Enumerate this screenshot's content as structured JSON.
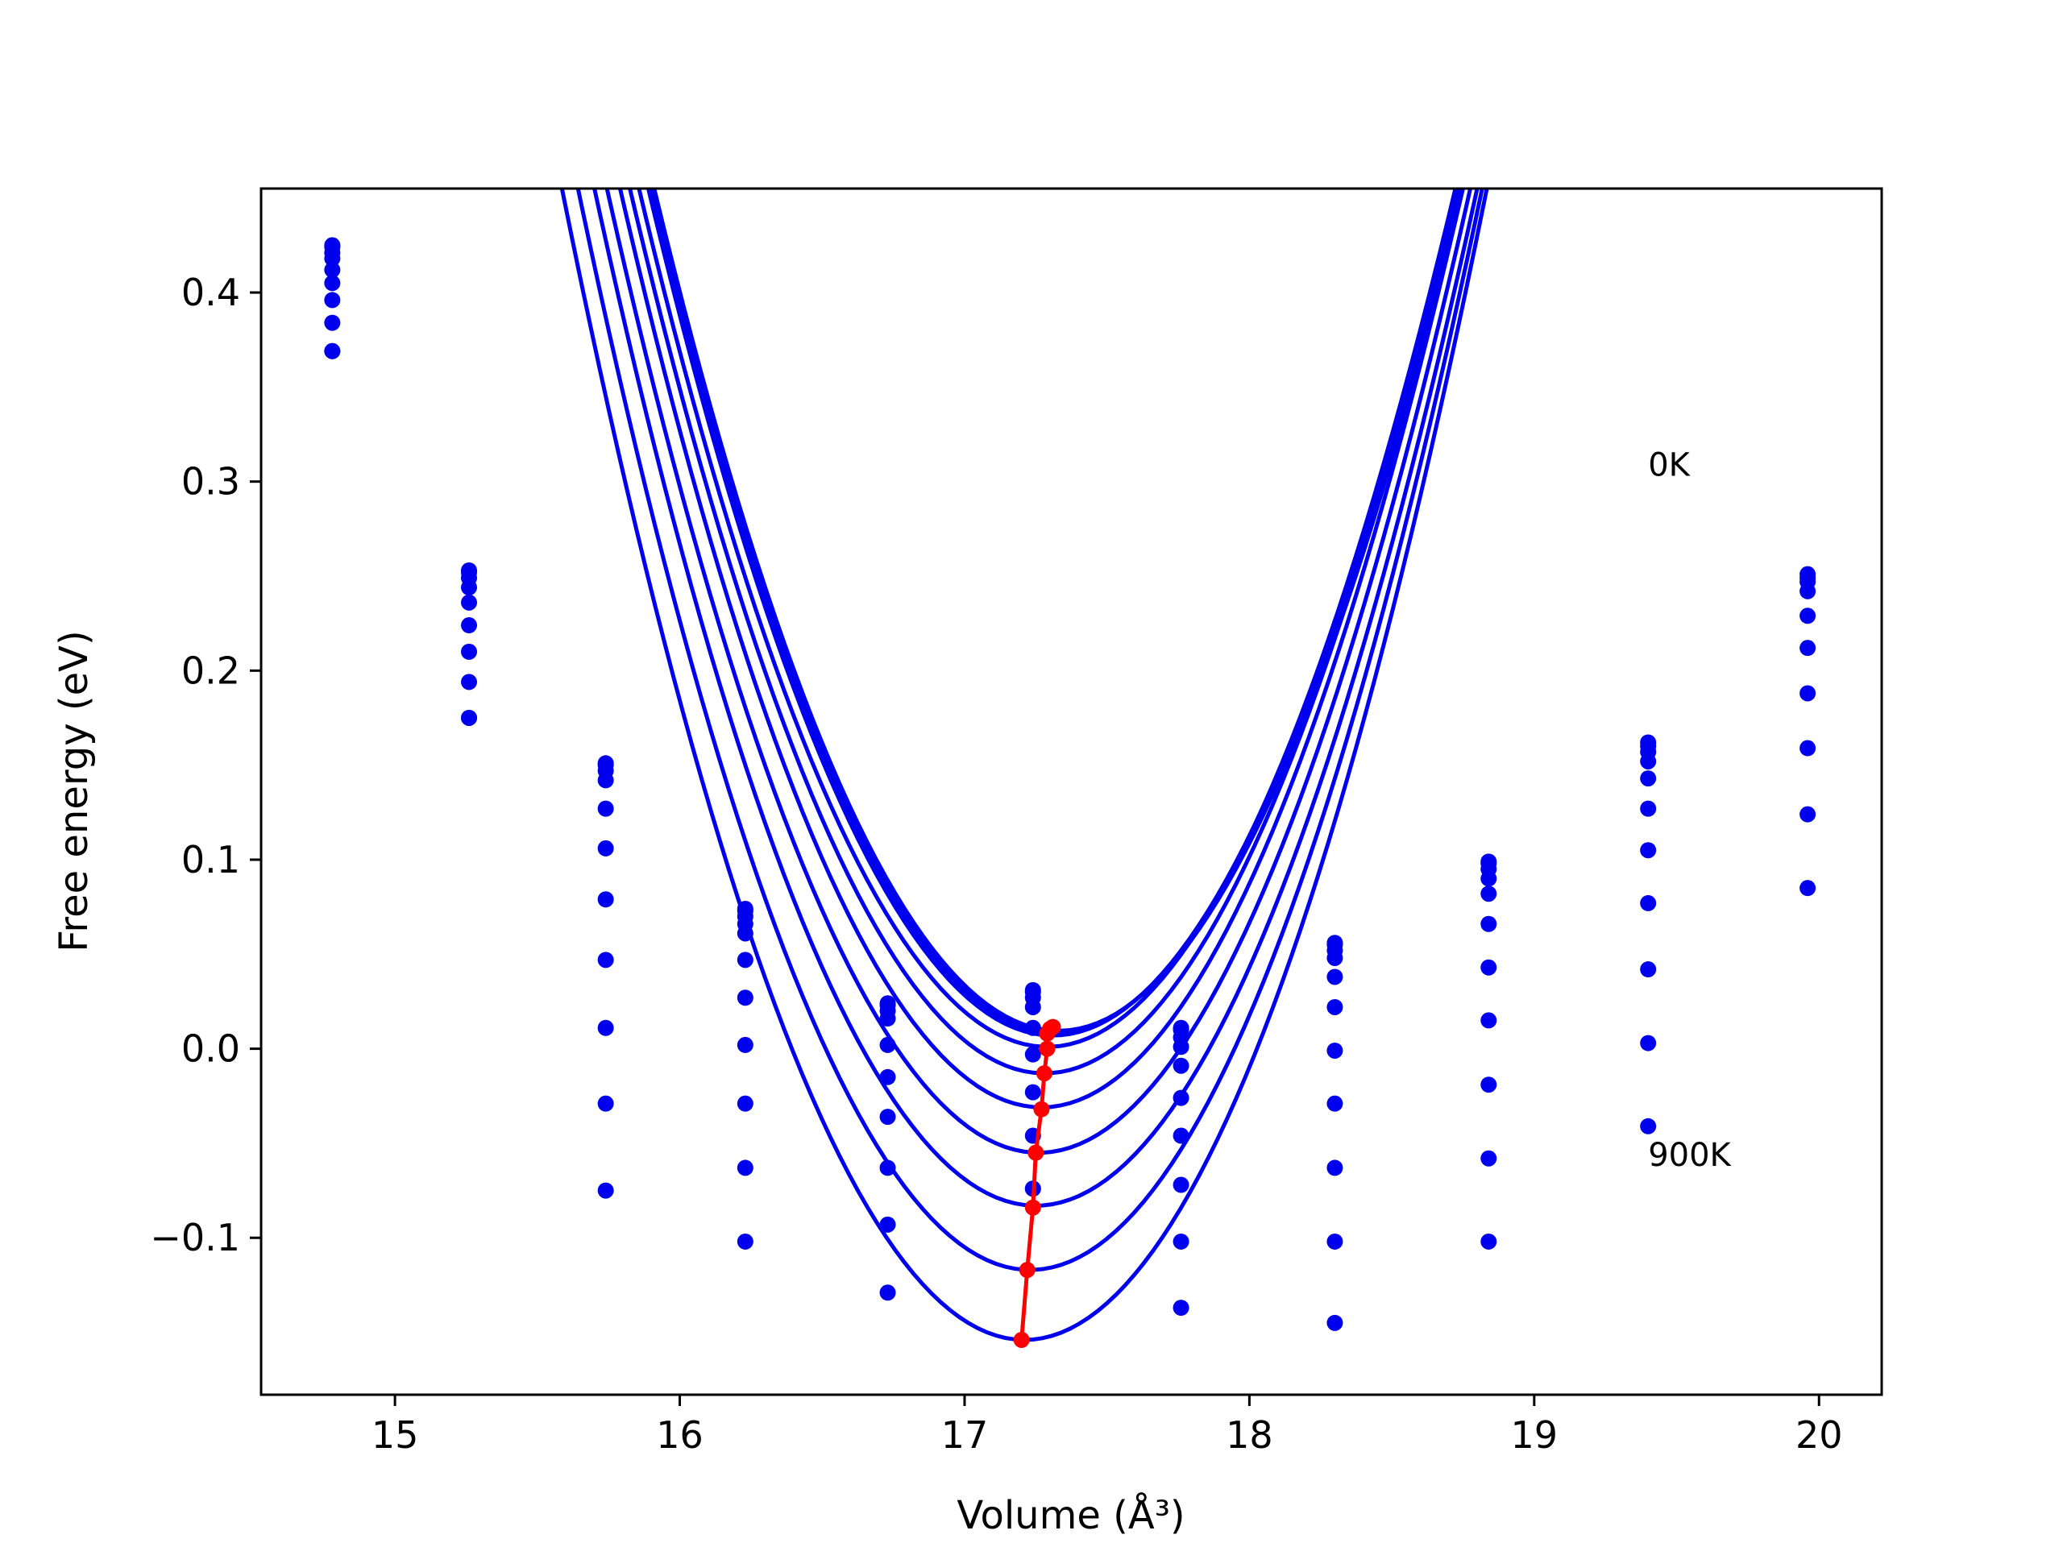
{
  "chart_data": {
    "type": "scatter",
    "title": "",
    "xlabel": "Volume (Å³)",
    "ylabel": "Free energy (eV)",
    "xlim": [
      14.53,
      20.22
    ],
    "ylim": [
      -0.183,
      0.455
    ],
    "xticks": [
      15,
      16,
      17,
      18,
      19,
      20
    ],
    "yticks": [
      -0.1,
      0.0,
      0.1,
      0.2,
      0.3,
      0.4
    ],
    "xtick_labels": [
      "15",
      "16",
      "17",
      "18",
      "19",
      "20"
    ],
    "ytick_labels": [
      "−0.1",
      "0.0",
      "0.1",
      "0.2",
      "0.3",
      "0.4"
    ],
    "grid": false,
    "legend": "none",
    "colors": {
      "points": "#0000ee",
      "fits": "#0000ee",
      "minima": "#ff0000"
    },
    "annotations": [
      {
        "text": "0K",
        "x": 19.4,
        "y": 0.303
      },
      {
        "text": "900K",
        "x": 19.4,
        "y": -0.062
      }
    ],
    "volumes": [
      14.78,
      15.26,
      15.74,
      16.23,
      16.73,
      17.24,
      17.76,
      18.3,
      18.84,
      19.4,
      19.96
    ],
    "series": [
      {
        "values": [
          0.425,
          0.253,
          0.151,
          0.074,
          0.024,
          0.031,
          0.011,
          0.056,
          0.099,
          0.162,
          0.251
        ],
        "fit": {
          "a": 0.221,
          "v0": 17.33,
          "e0": 0.0095
        },
        "minimum": [
          17.31,
          0.0115
        ]
      },
      {
        "values": [
          0.424,
          0.252,
          0.15,
          0.073,
          0.023,
          0.03,
          0.01,
          0.055,
          0.098,
          0.16,
          0.249
        ],
        "fit": {
          "a": 0.221,
          "v0": 17.32,
          "e0": 0.0085
        },
        "minimum": [
          17.3,
          0.0105
        ]
      },
      {
        "values": [
          0.421,
          0.249,
          0.147,
          0.07,
          0.02,
          0.027,
          0.006,
          0.052,
          0.095,
          0.157,
          0.247
        ],
        "fit": {
          "a": 0.222,
          "v0": 17.31,
          "e0": 0.007
        },
        "minimum": [
          17.29,
          0.008
        ]
      },
      {
        "values": [
          0.418,
          0.244,
          0.142,
          0.066,
          0.016,
          0.022,
          0.001,
          0.048,
          0.09,
          0.152,
          0.242
        ],
        "fit": {
          "a": 0.221,
          "v0": 17.29,
          "e0": 0.001
        },
        "minimum": [
          17.29,
          0.0
        ]
      },
      {
        "values": [
          0.412,
          0.236,
          0.127,
          0.061,
          0.002,
          0.011,
          -0.009,
          0.038,
          0.082,
          0.143,
          0.229
        ],
        "fit": {
          "a": 0.221,
          "v0": 17.28,
          "e0": -0.013
        },
        "minimum": [
          17.28,
          -0.013
        ]
      },
      {
        "values": [
          0.405,
          0.224,
          0.106,
          0.047,
          -0.015,
          -0.003,
          -0.026,
          0.022,
          0.066,
          0.127,
          0.212
        ],
        "fit": {
          "a": 0.222,
          "v0": 17.27,
          "e0": -0.031
        },
        "minimum": [
          17.27,
          -0.032
        ]
      },
      {
        "values": [
          0.396,
          0.21,
          0.079,
          0.027,
          -0.036,
          -0.023,
          -0.046,
          -0.001,
          0.043,
          0.105,
          0.188
        ],
        "fit": {
          "a": 0.222,
          "v0": 17.26,
          "e0": -0.055
        },
        "minimum": [
          17.25,
          -0.055
        ]
      },
      {
        "values": [
          0.384,
          0.194,
          0.047,
          0.002,
          -0.063,
          -0.046,
          -0.072,
          -0.029,
          0.015,
          0.077,
          0.159
        ],
        "fit": {
          "a": 0.224,
          "v0": 17.25,
          "e0": -0.083
        },
        "minimum": [
          17.24,
          -0.084
        ]
      },
      {
        "values": [
          0.369,
          0.175,
          0.011,
          -0.029,
          -0.093,
          -0.074,
          -0.102,
          -0.063,
          -0.019,
          0.042,
          0.124
        ],
        "fit": {
          "a": 0.227,
          "v0": 17.23,
          "e0": -0.117
        },
        "minimum": [
          17.22,
          -0.117
        ]
      },
      {
        "values": [
          0.369,
          0.175,
          -0.029,
          -0.063,
          -0.129,
          -0.074,
          -0.137,
          -0.102,
          -0.058,
          0.003,
          0.085
        ],
        "fit": {
          "a": 0.231,
          "v0": 17.21,
          "e0": -0.154
        },
        "minimum": [
          17.2,
          -0.154
        ]
      },
      {
        "values": [
          null,
          null,
          -0.075,
          -0.102,
          null,
          null,
          null,
          -0.145,
          -0.102,
          -0.041,
          null
        ],
        "fit": null,
        "minimum": null
      }
    ]
  }
}
